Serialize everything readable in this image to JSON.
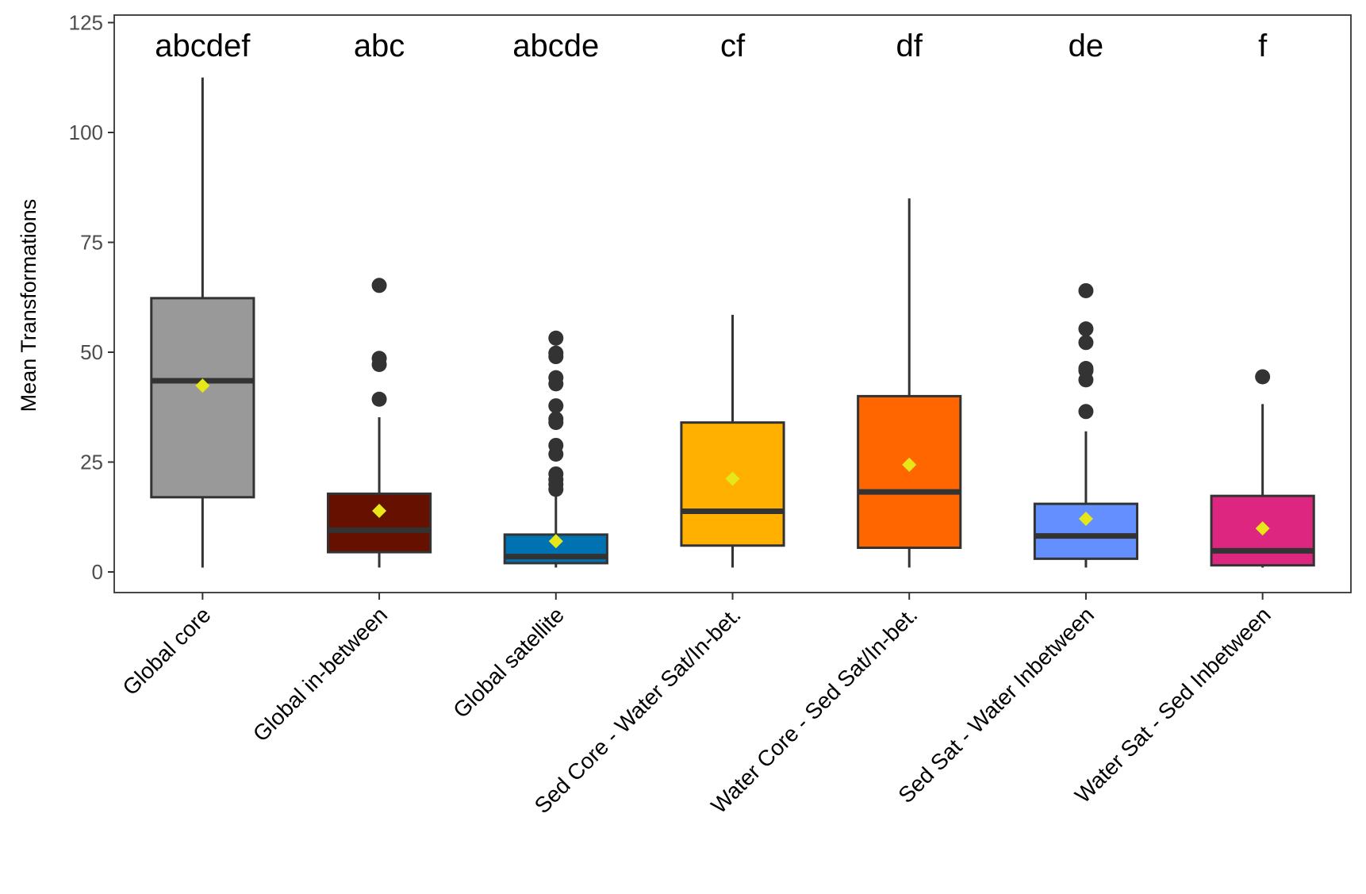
{
  "chart_data": {
    "type": "boxplot",
    "ylabel": "Mean Transformations",
    "xlabel": "",
    "ylim": [
      -4.5,
      125
    ],
    "yticks": [
      0,
      25,
      50,
      75,
      100,
      125
    ],
    "grid": false,
    "colors": {
      "box_outline": "#333333",
      "mean_marker": "#e6e619"
    },
    "categories": [
      "Global core",
      "Global in-between",
      "Global satellite",
      "Sed Core - Water Sat/In-bet.",
      "Water Core - Sed Sat/In-bet.",
      "Sed Sat - Water Inbetween",
      "Water Sat - Sed Inbetween"
    ],
    "series": [
      {
        "category": "Global core",
        "letters": "abcdef",
        "fill": "#999999",
        "whisker_low": 1,
        "q1": 17,
        "median": 43.5,
        "q3": 62.3,
        "whisker_high": 112.5,
        "mean": 42.4,
        "outliers": []
      },
      {
        "category": "Global in-between",
        "letters": "abc",
        "fill": "#661100",
        "whisker_low": 1,
        "q1": 4.5,
        "median": 9.5,
        "q3": 17.8,
        "whisker_high": 35.2,
        "mean": 13.9,
        "outliers": [
          39.3,
          47.2,
          48.6,
          65.2
        ]
      },
      {
        "category": "Global satellite",
        "letters": "abcde",
        "fill": "#0072b2",
        "whisker_low": 1,
        "q1": 2,
        "median": 3.5,
        "q3": 8.5,
        "whisker_high": 18,
        "mean": 7,
        "outliers": [
          18.8,
          19.9,
          21,
          22.3,
          26.8,
          28.8,
          34,
          34.8,
          37.8,
          42.8,
          44.2,
          49,
          49.8,
          53.2
        ]
      },
      {
        "category": "Sed Core - Water Sat/In-bet.",
        "letters": "cf",
        "fill": "#ffb000",
        "whisker_low": 1,
        "q1": 6,
        "median": 13.8,
        "q3": 34,
        "whisker_high": 58.5,
        "mean": 21.2,
        "outliers": []
      },
      {
        "category": "Water Core - Sed Sat/In-bet.",
        "letters": "df",
        "fill": "#ff6600",
        "whisker_low": 1,
        "q1": 5.5,
        "median": 18.2,
        "q3": 40,
        "whisker_high": 85,
        "mean": 24.4,
        "outliers": []
      },
      {
        "category": "Sed Sat - Water Inbetween",
        "letters": "de",
        "fill": "#648fff",
        "whisker_low": 1,
        "q1": 3,
        "median": 8.2,
        "q3": 15.5,
        "whisker_high": 32,
        "mean": 12.1,
        "outliers": [
          36.5,
          43.7,
          45.8,
          46.3,
          52.2,
          55.3,
          64
        ]
      },
      {
        "category": "Water Sat - Sed Inbetween",
        "letters": "f",
        "fill": "#dc267f",
        "whisker_low": 1,
        "q1": 1.5,
        "median": 4.8,
        "q3": 17.3,
        "whisker_high": 38.2,
        "mean": 9.9,
        "outliers": [
          44.4
        ]
      }
    ]
  }
}
